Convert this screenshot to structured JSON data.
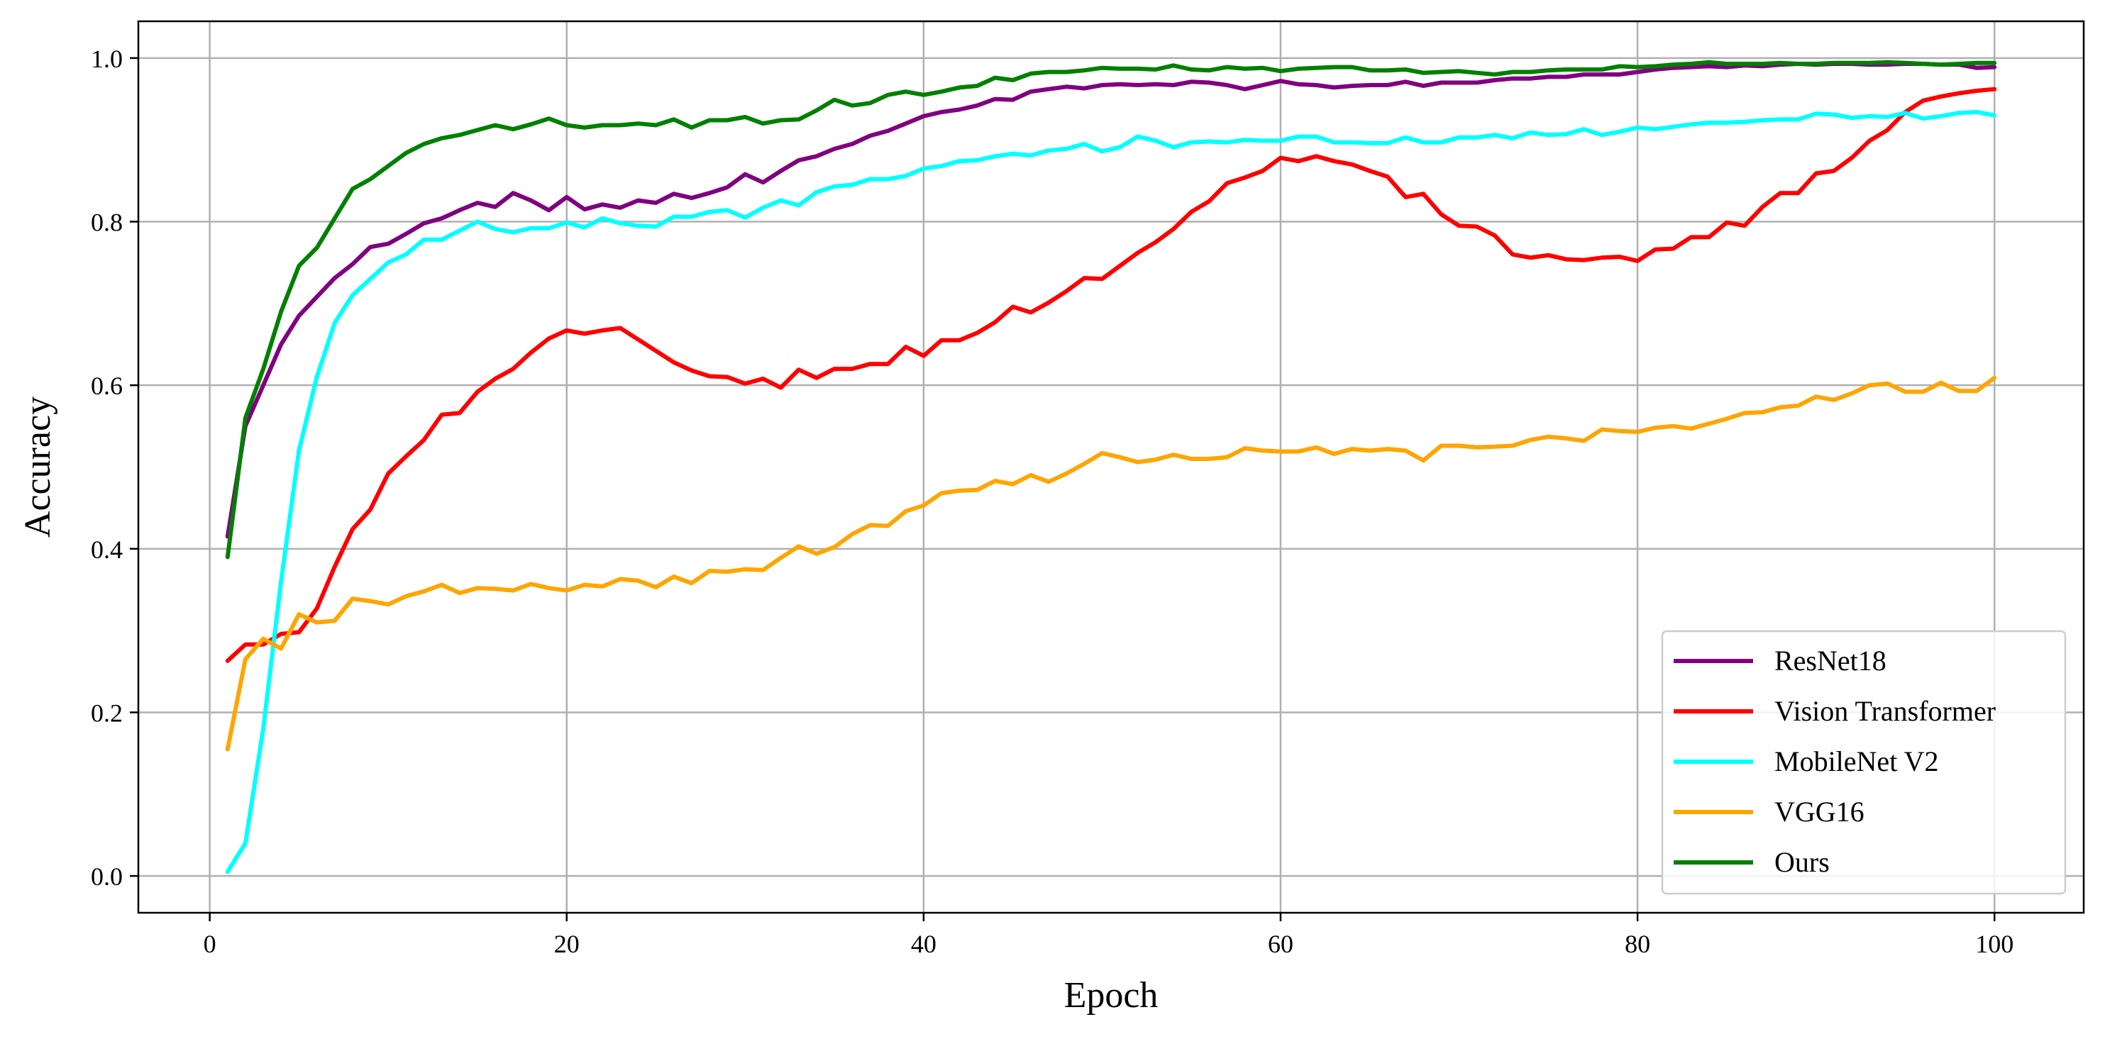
{
  "chart_data": {
    "type": "line",
    "title": "",
    "xlabel": "Epoch",
    "ylabel": "Accuracy",
    "xlim": [
      -4,
      105
    ],
    "ylim": [
      -0.045,
      1.045
    ],
    "xticks": [
      0,
      20,
      40,
      60,
      80,
      100
    ],
    "xtick_labels": [
      "0",
      "20",
      "40",
      "60",
      "80",
      "100"
    ],
    "yticks": [
      0.0,
      0.2,
      0.4,
      0.6,
      0.8,
      1.0
    ],
    "ytick_labels": [
      "0.0",
      "0.2",
      "0.4",
      "0.6",
      "0.8",
      "1.0"
    ],
    "grid": true,
    "legend_position": "bottom-right",
    "x": [
      1,
      2,
      3,
      4,
      5,
      6,
      7,
      8,
      9,
      10,
      11,
      12,
      13,
      14,
      15,
      16,
      17,
      18,
      19,
      20,
      21,
      22,
      23,
      24,
      25,
      26,
      27,
      28,
      29,
      30,
      31,
      32,
      33,
      34,
      35,
      36,
      37,
      38,
      39,
      40,
      41,
      42,
      43,
      44,
      45,
      46,
      47,
      48,
      49,
      50,
      51,
      52,
      53,
      54,
      55,
      56,
      57,
      58,
      59,
      60,
      61,
      62,
      63,
      64,
      65,
      66,
      67,
      68,
      69,
      70,
      71,
      72,
      73,
      74,
      75,
      76,
      77,
      78,
      79,
      80,
      81,
      82,
      83,
      84,
      85,
      86,
      87,
      88,
      89,
      90,
      91,
      92,
      93,
      94,
      95,
      96,
      97,
      98,
      99,
      100
    ],
    "series": [
      {
        "name": "ResNet18",
        "color": "#800080",
        "values": [
          0.415,
          0.55,
          0.6,
          0.65,
          0.685,
          0.708,
          0.731,
          0.748,
          0.769,
          0.773,
          0.785,
          0.798,
          0.804,
          0.814,
          0.823,
          0.818,
          0.835,
          0.826,
          0.814,
          0.83,
          0.815,
          0.821,
          0.817,
          0.826,
          0.823,
          0.834,
          0.829,
          0.835,
          0.842,
          0.858,
          0.848,
          0.862,
          0.875,
          0.88,
          0.889,
          0.895,
          0.905,
          0.911,
          0.92,
          0.929,
          0.934,
          0.937,
          0.942,
          0.95,
          0.949,
          0.959,
          0.962,
          0.965,
          0.963,
          0.967,
          0.968,
          0.967,
          0.968,
          0.967,
          0.971,
          0.97,
          0.967,
          0.962,
          0.967,
          0.972,
          0.968,
          0.967,
          0.964,
          0.966,
          0.967,
          0.967,
          0.971,
          0.966,
          0.97,
          0.97,
          0.97,
          0.973,
          0.975,
          0.975,
          0.977,
          0.977,
          0.98,
          0.98,
          0.98,
          0.983,
          0.986,
          0.988,
          0.989,
          0.99,
          0.989,
          0.991,
          0.99,
          0.992,
          0.993,
          0.992,
          0.993,
          0.993,
          0.992,
          0.992,
          0.993,
          0.993,
          0.992,
          0.992,
          0.988,
          0.989
        ]
      },
      {
        "name": "Vision Transformer",
        "color": "#ff0000",
        "values": [
          0.263,
          0.283,
          0.283,
          0.296,
          0.298,
          0.327,
          0.378,
          0.424,
          0.448,
          0.492,
          0.513,
          0.533,
          0.564,
          0.566,
          0.592,
          0.608,
          0.62,
          0.64,
          0.657,
          0.667,
          0.663,
          0.667,
          0.67,
          0.656,
          0.642,
          0.628,
          0.618,
          0.611,
          0.61,
          0.602,
          0.608,
          0.597,
          0.619,
          0.609,
          0.62,
          0.62,
          0.626,
          0.626,
          0.647,
          0.636,
          0.655,
          0.655,
          0.664,
          0.677,
          0.696,
          0.689,
          0.701,
          0.715,
          0.731,
          0.73,
          0.746,
          0.762,
          0.775,
          0.791,
          0.812,
          0.825,
          0.847,
          0.854,
          0.862,
          0.878,
          0.874,
          0.88,
          0.874,
          0.87,
          0.862,
          0.855,
          0.83,
          0.834,
          0.809,
          0.795,
          0.794,
          0.783,
          0.76,
          0.756,
          0.759,
          0.754,
          0.753,
          0.756,
          0.757,
          0.752,
          0.766,
          0.767,
          0.781,
          0.781,
          0.799,
          0.795,
          0.818,
          0.835,
          0.835,
          0.859,
          0.862,
          0.878,
          0.899,
          0.912,
          0.934,
          0.948,
          0.953,
          0.957,
          0.96,
          0.962
        ]
      },
      {
        "name": "MobileNet V2",
        "color": "#00ffff",
        "values": [
          0.005,
          0.04,
          0.18,
          0.36,
          0.52,
          0.61,
          0.676,
          0.71,
          0.73,
          0.75,
          0.76,
          0.778,
          0.778,
          0.789,
          0.8,
          0.791,
          0.787,
          0.792,
          0.792,
          0.799,
          0.793,
          0.804,
          0.798,
          0.795,
          0.794,
          0.806,
          0.806,
          0.812,
          0.814,
          0.805,
          0.817,
          0.826,
          0.82,
          0.836,
          0.843,
          0.845,
          0.852,
          0.852,
          0.856,
          0.865,
          0.868,
          0.874,
          0.875,
          0.88,
          0.883,
          0.881,
          0.887,
          0.889,
          0.895,
          0.886,
          0.891,
          0.904,
          0.899,
          0.891,
          0.897,
          0.898,
          0.897,
          0.9,
          0.899,
          0.899,
          0.904,
          0.904,
          0.897,
          0.897,
          0.896,
          0.896,
          0.903,
          0.897,
          0.897,
          0.903,
          0.903,
          0.906,
          0.902,
          0.909,
          0.906,
          0.907,
          0.913,
          0.906,
          0.91,
          0.915,
          0.913,
          0.916,
          0.919,
          0.921,
          0.921,
          0.922,
          0.924,
          0.925,
          0.925,
          0.932,
          0.931,
          0.927,
          0.929,
          0.928,
          0.933,
          0.926,
          0.929,
          0.933,
          0.934,
          0.93
        ]
      },
      {
        "name": "VGG16",
        "color": "#ffa500",
        "values": [
          0.155,
          0.265,
          0.29,
          0.278,
          0.32,
          0.31,
          0.312,
          0.339,
          0.336,
          0.332,
          0.342,
          0.348,
          0.356,
          0.346,
          0.352,
          0.351,
          0.349,
          0.357,
          0.352,
          0.349,
          0.356,
          0.354,
          0.363,
          0.361,
          0.353,
          0.366,
          0.358,
          0.373,
          0.372,
          0.375,
          0.374,
          0.389,
          0.403,
          0.394,
          0.402,
          0.418,
          0.429,
          0.428,
          0.446,
          0.453,
          0.468,
          0.471,
          0.472,
          0.483,
          0.479,
          0.49,
          0.482,
          0.492,
          0.504,
          0.517,
          0.512,
          0.506,
          0.509,
          0.515,
          0.51,
          0.51,
          0.512,
          0.523,
          0.52,
          0.519,
          0.519,
          0.524,
          0.516,
          0.522,
          0.52,
          0.522,
          0.52,
          0.508,
          0.526,
          0.526,
          0.524,
          0.525,
          0.526,
          0.533,
          0.537,
          0.535,
          0.532,
          0.546,
          0.544,
          0.543,
          0.548,
          0.55,
          0.547,
          0.553,
          0.559,
          0.566,
          0.567,
          0.573,
          0.575,
          0.586,
          0.582,
          0.59,
          0.6,
          0.602,
          0.592,
          0.592,
          0.603,
          0.593,
          0.593,
          0.609
        ]
      },
      {
        "name": "Ours",
        "color": "#008000",
        "values": [
          0.39,
          0.56,
          0.62,
          0.69,
          0.746,
          0.768,
          0.804,
          0.84,
          0.852,
          0.868,
          0.884,
          0.895,
          0.902,
          0.906,
          0.912,
          0.918,
          0.913,
          0.919,
          0.926,
          0.918,
          0.915,
          0.918,
          0.918,
          0.92,
          0.918,
          0.925,
          0.915,
          0.924,
          0.924,
          0.928,
          0.92,
          0.924,
          0.925,
          0.936,
          0.949,
          0.942,
          0.945,
          0.955,
          0.959,
          0.955,
          0.959,
          0.964,
          0.966,
          0.976,
          0.973,
          0.981,
          0.983,
          0.983,
          0.985,
          0.988,
          0.987,
          0.987,
          0.986,
          0.991,
          0.986,
          0.985,
          0.989,
          0.987,
          0.988,
          0.984,
          0.987,
          0.988,
          0.989,
          0.989,
          0.985,
          0.985,
          0.986,
          0.982,
          0.983,
          0.984,
          0.982,
          0.98,
          0.983,
          0.983,
          0.985,
          0.986,
          0.986,
          0.986,
          0.99,
          0.989,
          0.99,
          0.992,
          0.993,
          0.995,
          0.993,
          0.993,
          0.993,
          0.994,
          0.993,
          0.993,
          0.994,
          0.994,
          0.994,
          0.995,
          0.994,
          0.993,
          0.992,
          0.993,
          0.994,
          0.994
        ]
      }
    ]
  }
}
